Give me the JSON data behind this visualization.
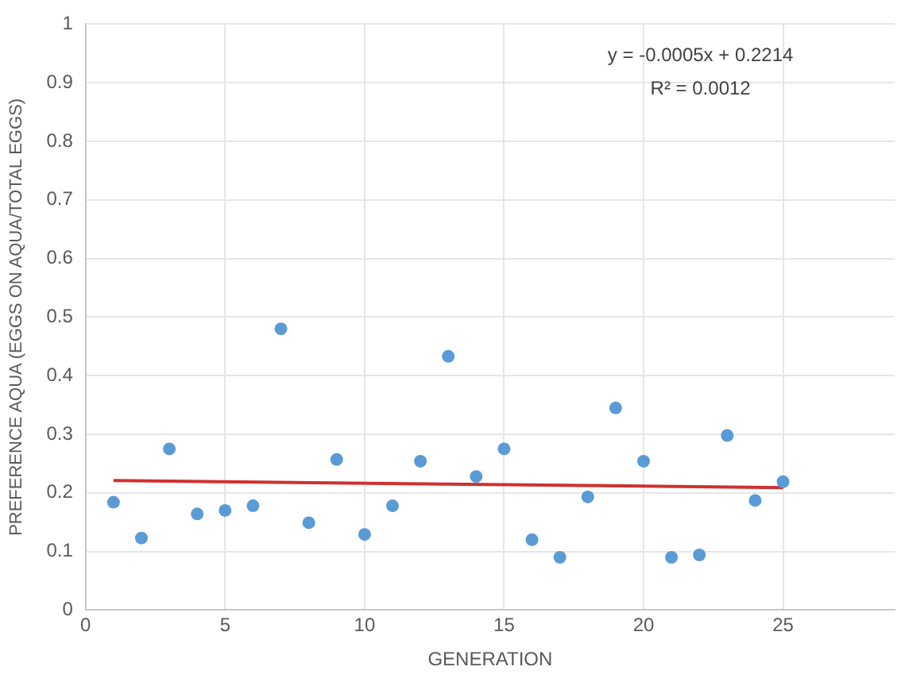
{
  "chart_data": {
    "type": "scatter",
    "xlabel": "GENERATION",
    "ylabel": "PREFERENCE AQUA (EGGS ON AQUA/TOTAL EGGS)",
    "annotations": [
      "y = -0.0005x + 0.2214",
      "R² = 0.0012"
    ],
    "xlim": [
      0,
      29
    ],
    "xticks": [
      0,
      5,
      10,
      15,
      20,
      25
    ],
    "ylim": [
      0,
      1
    ],
    "yticks": [
      0,
      0.1,
      0.2,
      0.3,
      0.4,
      0.5,
      0.6,
      0.7,
      0.8,
      0.9,
      1
    ],
    "grid": true,
    "legend": false,
    "marker": "circle",
    "series": [
      {
        "color": "#5b9bd5",
        "x": [
          1,
          2,
          3,
          4,
          5,
          6,
          7,
          8,
          9,
          10,
          11,
          12,
          13,
          14,
          15,
          16,
          17,
          18,
          19,
          20,
          21,
          22,
          23,
          24,
          25
        ],
        "values": [
          0.184,
          0.123,
          0.275,
          0.164,
          0.17,
          0.178,
          0.48,
          0.149,
          0.257,
          0.129,
          0.178,
          0.254,
          0.433,
          0.228,
          0.275,
          0.12,
          0.09,
          0.193,
          0.345,
          0.254,
          0.09,
          0.094,
          0.298,
          0.187,
          0.219
        ]
      },
      {
        "type": "line",
        "color": "#d03030",
        "x": [
          1,
          25
        ],
        "values": [
          0.221,
          0.209
        ],
        "marker": "none"
      }
    ]
  }
}
